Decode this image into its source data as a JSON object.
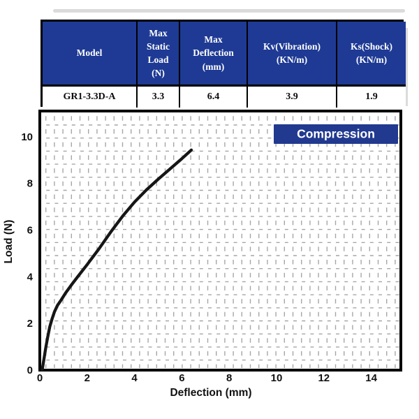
{
  "colors": {
    "table_header_bg": "#1e3a94",
    "badge_bg": "#21398f",
    "grid": "#a6a6a6",
    "curve": "#161616",
    "header_text": "#ffffff",
    "body_text": "#0b0b0b"
  },
  "table": {
    "headers": [
      "Model",
      "Max\nStatic\nLoad\n(N)",
      "Max\nDeflection\n(mm)",
      "Kv(Vibration)\n(KN/m)",
      "Ks(Shock)\n(KN/m)"
    ],
    "rows": [
      [
        "GR1-3.3D-A",
        "3.3",
        "6.4",
        "3.9",
        "1.9"
      ]
    ]
  },
  "chart_data": {
    "type": "line",
    "title": "",
    "badge": "Compression",
    "xlabel": "Deflection (mm)",
    "ylabel": "Load (N)",
    "xlim": [
      0,
      15.25
    ],
    "ylim": [
      0,
      11.1
    ],
    "xticks": [
      0,
      2,
      4,
      6,
      8,
      10,
      12,
      14
    ],
    "yticks": [
      0,
      2,
      4,
      6,
      8,
      10
    ],
    "grid": "fine dashed minor grid",
    "legend_position": "top-right badge",
    "series": [
      {
        "name": "Compression",
        "points": [
          [
            0.1,
            0
          ],
          [
            0.17,
            0.45
          ],
          [
            0.25,
            0.95
          ],
          [
            0.33,
            1.4
          ],
          [
            0.42,
            1.85
          ],
          [
            0.52,
            2.2
          ],
          [
            0.62,
            2.5
          ],
          [
            0.75,
            2.78
          ],
          [
            0.9,
            3.0
          ],
          [
            1.1,
            3.32
          ],
          [
            1.35,
            3.67
          ],
          [
            1.6,
            4.0
          ],
          [
            2.0,
            4.52
          ],
          [
            2.5,
            5.2
          ],
          [
            3.0,
            5.92
          ],
          [
            3.5,
            6.6
          ],
          [
            4.0,
            7.2
          ],
          [
            4.5,
            7.72
          ],
          [
            5.0,
            8.18
          ],
          [
            5.5,
            8.62
          ],
          [
            6.0,
            9.06
          ],
          [
            6.4,
            9.43
          ]
        ]
      }
    ]
  }
}
